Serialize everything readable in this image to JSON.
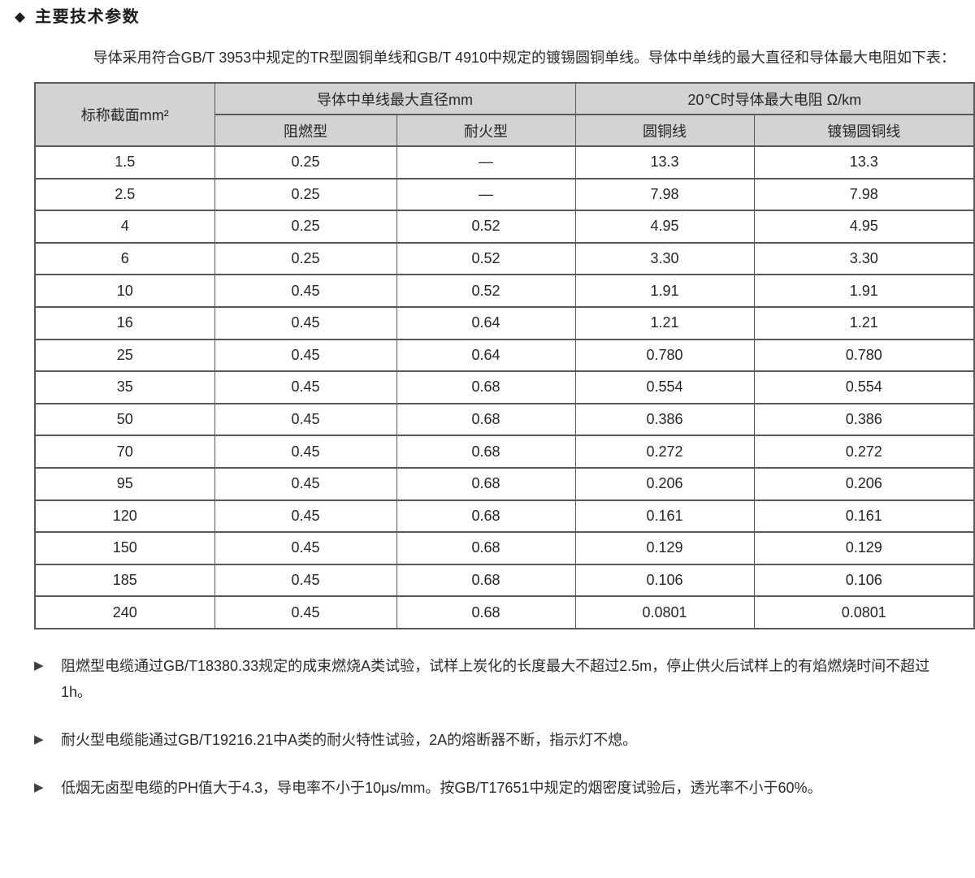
{
  "header": {
    "marker": "◆",
    "title": "主要技术参数"
  },
  "intro": {
    "text": "导体采用符合GB/T 3953中规定的TR型圆铜单线和GB/T 4910中规定的镀锡圆铜单线。导体中单线的最大直径和导体最大电阻如下表："
  },
  "table": {
    "col1_header": "标称截面mm²",
    "group_headers": [
      "导体中单线最大直径mm",
      "20℃时导体最大电阻 Ω/km"
    ],
    "sub_headers": [
      "阻燃型",
      "耐火型",
      "圆铜线",
      "镀锡圆铜线"
    ],
    "rows": [
      [
        "1.5",
        "0.25",
        "—",
        "13.3",
        "13.3"
      ],
      [
        "2.5",
        "0.25",
        "—",
        "7.98",
        "7.98"
      ],
      [
        "4",
        "0.25",
        "0.52",
        "4.95",
        "4.95"
      ],
      [
        "6",
        "0.25",
        "0.52",
        "3.30",
        "3.30"
      ],
      [
        "10",
        "0.45",
        "0.52",
        "1.91",
        "1.91"
      ],
      [
        "16",
        "0.45",
        "0.64",
        "1.21",
        "1.21"
      ],
      [
        "25",
        "0.45",
        "0.64",
        "0.780",
        "0.780"
      ],
      [
        "35",
        "0.45",
        "0.68",
        "0.554",
        "0.554"
      ],
      [
        "50",
        "0.45",
        "0.68",
        "0.386",
        "0.386"
      ],
      [
        "70",
        "0.45",
        "0.68",
        "0.272",
        "0.272"
      ],
      [
        "95",
        "0.45",
        "0.68",
        "0.206",
        "0.206"
      ],
      [
        "120",
        "0.45",
        "0.68",
        "0.161",
        "0.161"
      ],
      [
        "150",
        "0.45",
        "0.68",
        "0.129",
        "0.129"
      ],
      [
        "185",
        "0.45",
        "0.68",
        "0.106",
        "0.106"
      ],
      [
        "240",
        "0.45",
        "0.68",
        "0.0801",
        "0.0801"
      ]
    ]
  },
  "notes": [
    {
      "marker": "▶",
      "text": "阻燃型电缆通过GB/T18380.33规定的成束燃烧A类试验，试样上炭化的长度最大不超过2.5m，停止供火后试样上的有焰燃烧时间不超过1h。"
    },
    {
      "marker": "▶",
      "text": "耐火型电缆能通过GB/T19216.21中A类的耐火特性试验，2A的熔断器不断，指示灯不熄。"
    },
    {
      "marker": "▶",
      "text": "低烟无卤型电缆的PH值大于4.3，导电率不小于10μs/mm。按GB/T17651中规定的烟密度试验后，透光率不小于60%。"
    }
  ],
  "colors": {
    "page_bg": "#ffffff",
    "table_header_bg": "#d2d3d4",
    "table_border": "#58595b",
    "text": "#2b2b2b"
  }
}
